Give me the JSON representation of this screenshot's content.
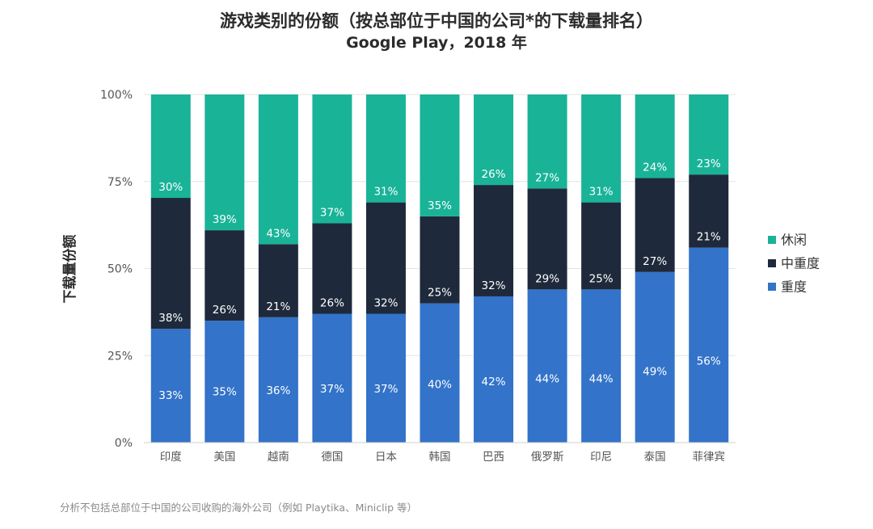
{
  "chart_data": {
    "type": "bar",
    "stacked": true,
    "normalized": true,
    "title": "游戏类别的份额（按总部位于中国的公司*的下载量排名）",
    "subtitle": "Google Play，2018 年",
    "ylabel": "下载量份额",
    "xlabel": "",
    "ylim": [
      0,
      100
    ],
    "yticks": [
      "0%",
      "25%",
      "50%",
      "75%",
      "100%"
    ],
    "categories": [
      "印度",
      "美国",
      "越南",
      "德国",
      "日本",
      "韩国",
      "巴西",
      "俄罗斯",
      "印尼",
      "泰国",
      "菲律宾"
    ],
    "series": [
      {
        "name": "重度",
        "color": "#3373c9",
        "values": [
          33,
          35,
          36,
          37,
          37,
          40,
          42,
          44,
          44,
          49,
          56
        ],
        "labels": [
          "33%",
          "35%",
          "36%",
          "37%",
          "37%",
          "40%",
          "42%",
          "44%",
          "44%",
          "49%",
          "56%"
        ]
      },
      {
        "name": "中重度",
        "color": "#1e2a3b",
        "values": [
          38,
          26,
          21,
          26,
          32,
          25,
          32,
          29,
          25,
          27,
          21
        ],
        "labels": [
          "38%",
          "26%",
          "21%",
          "26%",
          "32%",
          "25%",
          "32%",
          "29%",
          "25%",
          "27%",
          "21%"
        ]
      },
      {
        "name": "休闲",
        "color": "#19b398",
        "values": [
          30,
          39,
          43,
          37,
          31,
          35,
          26,
          27,
          31,
          24,
          23
        ],
        "labels": [
          "30%",
          "39%",
          "43%",
          "37%",
          "31%",
          "35%",
          "26%",
          "27%",
          "31%",
          "24%",
          "23%"
        ]
      }
    ],
    "legend": {
      "position": "right",
      "order": [
        "休闲",
        "中重度",
        "重度"
      ]
    },
    "grid": true
  },
  "footnote": "分析不包括总部位于中国的公司收购的海外公司（例如 Playtika、Miniclip 等）",
  "colors": {
    "axis_text": "#555555",
    "title": "#2b2b2b",
    "grid": "#e4e4e4"
  }
}
